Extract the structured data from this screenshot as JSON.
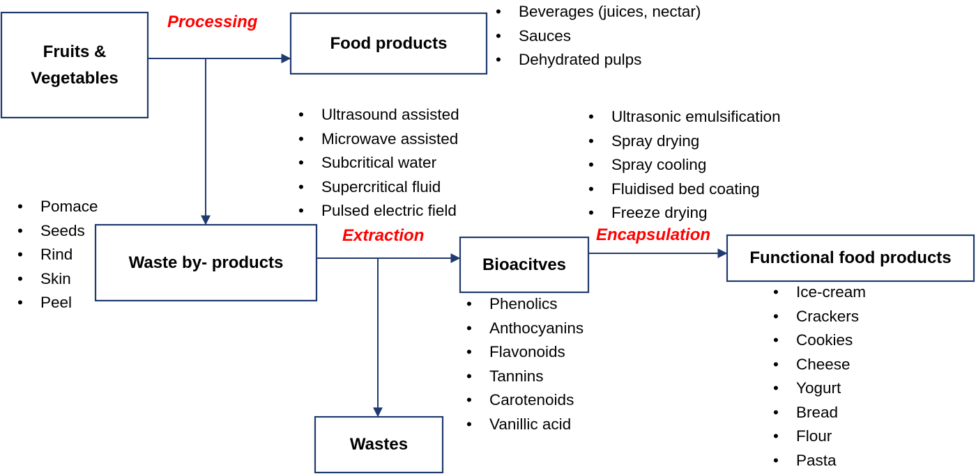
{
  "nodes": {
    "fruits": "Fruits & Vegetables",
    "food": "Food products",
    "waste": "Waste by- products",
    "bioactives": "Bioacitves",
    "functional": "Functional food products",
    "wastes": "Wastes"
  },
  "stages": {
    "processing": "Processing",
    "extraction": "Extraction",
    "encapsulation": "Encapsulation"
  },
  "lists": {
    "food_products": [
      "Beverages (juices, nectar)",
      "Sauces",
      "Dehydrated pulps"
    ],
    "extraction_methods": [
      "Ultrasound assisted",
      "Microwave assisted",
      "Subcritical water",
      "Supercritical fluid",
      "Pulsed electric field"
    ],
    "encapsulation_methods": [
      "Ultrasonic emulsification",
      "Spray drying",
      "Spray cooling",
      "Fluidised bed coating",
      "Freeze drying"
    ],
    "waste_types": [
      "Pomace",
      "Seeds",
      "Rind",
      "Skin",
      "Peel"
    ],
    "bioactive_compounds": [
      "Phenolics",
      "Anthocyanins",
      "Flavonoids",
      "Tannins",
      "Carotenoids",
      "Vanillic acid"
    ],
    "functional_products": [
      "Ice-cream",
      "Crackers",
      "Cookies",
      "Cheese",
      "Yogurt",
      "Bread",
      "Flour",
      "Pasta"
    ]
  },
  "colors": {
    "box_stroke": "#1f3a6e",
    "connector": "#1f3a6e",
    "stage_label": "#ff0000"
  }
}
